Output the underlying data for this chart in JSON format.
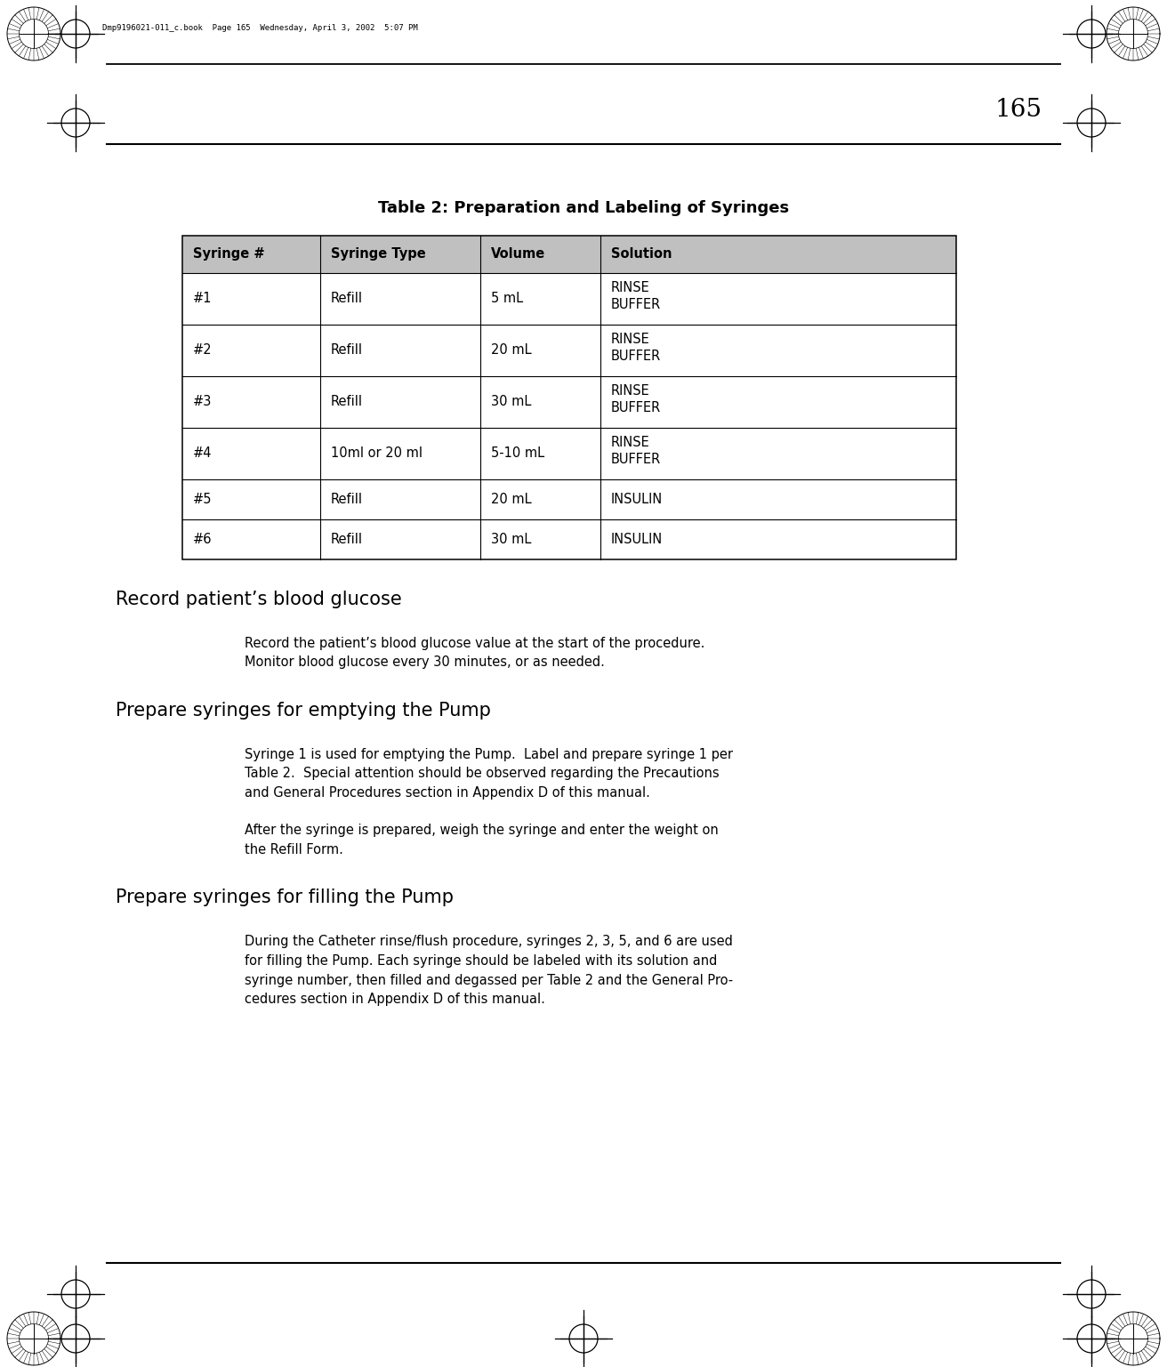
{
  "page_number": "165",
  "header_text": "Dmp9196021-011_c.book  Page 165  Wednesday, April 3, 2002  5:07 PM",
  "table_title": "Table 2: Preparation and Labeling of Syringes",
  "table_headers": [
    "Syringe #",
    "Syringe Type",
    "Volume",
    "Solution"
  ],
  "table_rows": [
    [
      "#1",
      "Refill",
      "5 mL",
      "RINSE\nBUFFER"
    ],
    [
      "#2",
      "Refill",
      "20 mL",
      "RINSE\nBUFFER"
    ],
    [
      "#3",
      "Refill",
      "30 mL",
      "RINSE\nBUFFER"
    ],
    [
      "#4",
      "10ml or 20 ml",
      "5-10 mL",
      "RINSE\nBUFFER"
    ],
    [
      "#5",
      "Refill",
      "20 mL",
      "INSULIN"
    ],
    [
      "#6",
      "Refill",
      "30 mL",
      "INSULIN"
    ]
  ],
  "section1_heading": "Record patient’s blood glucose",
  "section1_body": "Record the patient’s blood glucose value at the start of the procedure.\nMonitor blood glucose every 30 minutes, or as needed.",
  "section2_heading": "Prepare syringes for emptying the Pump",
  "section2_body1": "Syringe 1 is used for emptying the Pump.  Label and prepare syringe 1 per\nTable 2.  Special attention should be observed regarding the Precautions\nand General Procedures section in Appendix D of this manual.",
  "section2_body2": "After the syringe is prepared, weigh the syringe and enter the weight on\nthe Refill Form.",
  "section3_heading": "Prepare syringes for filling the Pump",
  "section3_body": "During the Catheter rinse/flush procedure, syringes 2, 3, 5, and 6 are used\nfor filling the Pump. Each syringe should be labeled with its solution and\nsyringe number, then filled and degassed per Table 2 and the General Pro-\ncedures section in Appendix D of this manual.",
  "bg_color": "#ffffff",
  "text_color": "#000000"
}
